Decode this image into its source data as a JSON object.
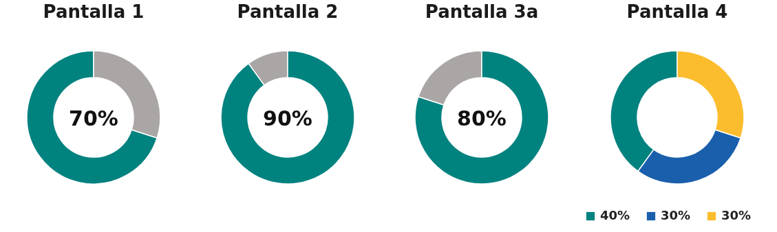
{
  "chart_data": [
    {
      "type": "donut",
      "title": "Pantalla 1",
      "categories": [
        null,
        null
      ],
      "values": [
        70,
        30
      ],
      "colors": [
        "#00827f",
        "#aaa6a5"
      ],
      "annotations": [
        "70%"
      ]
    },
    {
      "type": "donut",
      "title": "Pantalla 2",
      "categories": [
        null,
        null
      ],
      "values": [
        10,
        90
      ],
      "colors": [
        "#aaa6a5",
        "#00827f"
      ],
      "annotations": [
        "90%"
      ]
    },
    {
      "type": "donut",
      "title": "Pantalla 3a",
      "categories": [
        null,
        null
      ],
      "values": [
        20,
        80
      ],
      "colors": [
        "#aaa6a5",
        "#00827f"
      ],
      "annotations": [
        "80%"
      ]
    },
    {
      "type": "donut",
      "title": "Pantalla 4",
      "categories": [
        "40%",
        "30%",
        "30%"
      ],
      "values": [
        40,
        30,
        30
      ],
      "colors": [
        "#00827f",
        "#1a5fac",
        "#fbbd2d"
      ],
      "legend": "bottom"
    }
  ]
}
